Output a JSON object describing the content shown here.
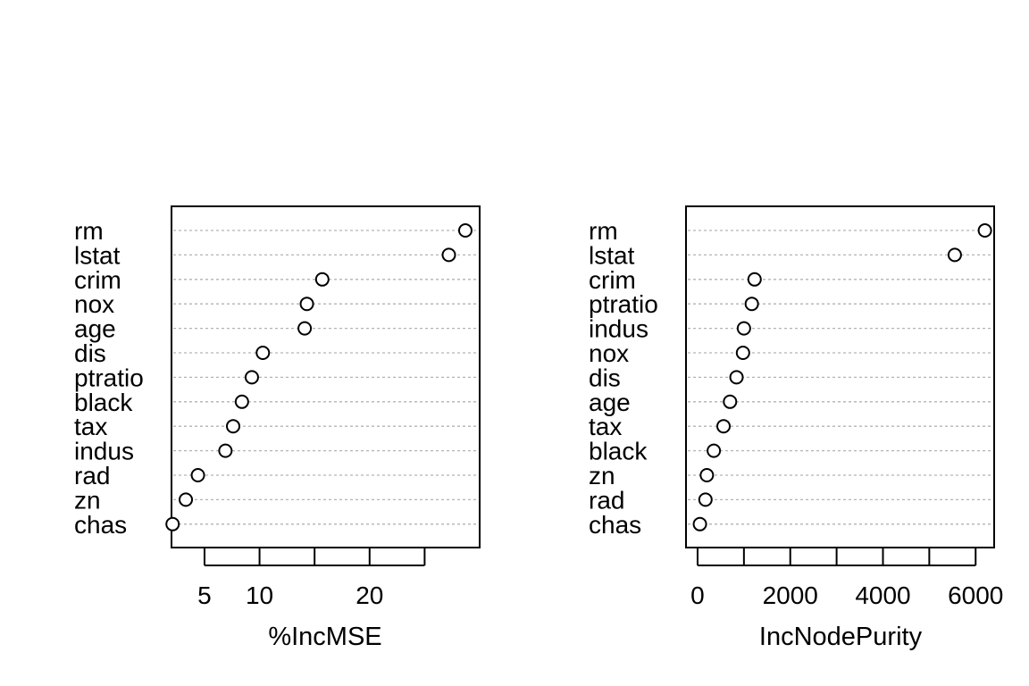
{
  "chart_data": [
    {
      "type": "scatter",
      "subtype": "dotchart",
      "title": "",
      "xlabel": "%IncMSE",
      "ylabel": "",
      "xlim": [
        2,
        30
      ],
      "xticks": [
        5,
        10,
        15,
        20,
        25
      ],
      "xtick_labels": [
        "5",
        "10",
        "",
        "20",
        ""
      ],
      "grid": "dotted horizontal guide per variable",
      "point_style": "open circle",
      "series": [
        {
          "labels": [
            "rm",
            "lstat",
            "crim",
            "nox",
            "age",
            "dis",
            "ptratio",
            "black",
            "tax",
            "indus",
            "rad",
            "zn",
            "chas"
          ],
          "values": [
            28.7,
            27.2,
            15.7,
            14.3,
            14.1,
            10.3,
            9.3,
            8.4,
            7.6,
            6.9,
            4.4,
            3.3,
            2.1
          ]
        }
      ]
    },
    {
      "type": "scatter",
      "subtype": "dotchart",
      "title": "",
      "xlabel": "IncNodePurity",
      "ylabel": "",
      "xlim": [
        -250,
        6400
      ],
      "xticks": [
        0,
        1000,
        2000,
        3000,
        4000,
        5000,
        6000
      ],
      "xtick_labels": [
        "0",
        "",
        "2000",
        "",
        "4000",
        "",
        "6000"
      ],
      "grid": "dotted horizontal guide per variable",
      "point_style": "open circle",
      "series": [
        {
          "labels": [
            "rm",
            "lstat",
            "crim",
            "ptratio",
            "indus",
            "nox",
            "dis",
            "age",
            "tax",
            "black",
            "zn",
            "rad",
            "chas"
          ],
          "values": [
            6200,
            5550,
            1230,
            1170,
            1000,
            980,
            840,
            700,
            560,
            350,
            200,
            170,
            50
          ]
        }
      ]
    }
  ]
}
